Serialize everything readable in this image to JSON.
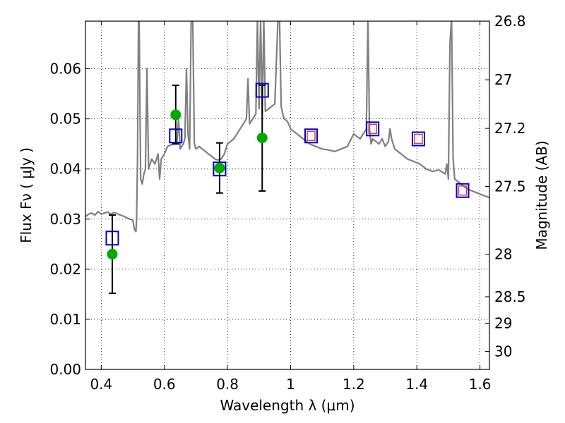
{
  "chart_data": {
    "type": "scatter",
    "xlabel": "Wavelength  λ (μm)",
    "ylabel": "Flux  Fν  ( μJy )",
    "y2label": "Magnitude (AB)",
    "xlim": [
      0.35,
      1.63
    ],
    "ylim": [
      0.0,
      0.0695
    ],
    "x_ticks": [
      0.4,
      0.6,
      0.8,
      1.0,
      1.2,
      1.4,
      1.6
    ],
    "x_tick_labels": [
      "0.4",
      "0.6",
      "0.8",
      "1",
      "1.2",
      "1.4",
      "1.6"
    ],
    "y_ticks": [
      0.0,
      0.01,
      0.02,
      0.03,
      0.04,
      0.05,
      0.06
    ],
    "y_tick_labels": [
      "0.00",
      "0.01",
      "0.02",
      "0.03",
      "0.04",
      "0.05",
      "0.06"
    ],
    "y2_ticks": [
      {
        "label": "26.8",
        "flux": 0.0695
      },
      {
        "label": "27",
        "flux": 0.0578
      },
      {
        "label": "27.2",
        "flux": 0.0481
      },
      {
        "label": "27.5",
        "flux": 0.0365
      },
      {
        "label": "28",
        "flux": 0.023
      },
      {
        "label": "28.5",
        "flux": 0.0145
      },
      {
        "label": "29",
        "flux": 0.0092
      },
      {
        "label": "30",
        "flux": 0.0036
      }
    ],
    "grid": true,
    "colors": {
      "model": "#808080",
      "observed": "#00aa00",
      "synthetic_box": "#0000cc",
      "inner_box": "#cc4444",
      "errorbar": "#000000"
    },
    "model_spectrum": {
      "x": [
        0.35,
        0.36,
        0.37,
        0.38,
        0.39,
        0.4,
        0.41,
        0.42,
        0.43,
        0.44,
        0.45,
        0.46,
        0.47,
        0.48,
        0.49,
        0.5,
        0.505,
        0.51,
        0.512,
        0.515,
        0.518,
        0.52,
        0.525,
        0.53,
        0.535,
        0.54,
        0.545,
        0.55,
        0.56,
        0.57,
        0.58,
        0.585,
        0.59,
        0.595,
        0.6,
        0.61,
        0.62,
        0.63,
        0.64,
        0.645,
        0.65,
        0.655,
        0.66,
        0.665,
        0.67,
        0.675,
        0.68,
        0.685,
        0.69,
        0.695,
        0.7,
        0.71,
        0.72,
        0.73,
        0.74,
        0.75,
        0.76,
        0.77,
        0.78,
        0.79,
        0.8,
        0.81,
        0.82,
        0.83,
        0.84,
        0.85,
        0.86,
        0.865,
        0.87,
        0.875,
        0.88,
        0.89,
        0.895,
        0.9,
        0.905,
        0.91,
        0.915,
        0.92,
        0.93,
        0.94,
        0.95,
        0.96,
        0.965,
        0.97,
        0.975,
        0.98,
        0.99,
        1.0,
        1.02,
        1.04,
        1.06,
        1.08,
        1.1,
        1.12,
        1.14,
        1.16,
        1.18,
        1.2,
        1.22,
        1.24,
        1.245,
        1.25,
        1.255,
        1.26,
        1.27,
        1.28,
        1.29,
        1.3,
        1.31,
        1.315,
        1.32,
        1.33,
        1.35,
        1.37,
        1.39,
        1.41,
        1.43,
        1.45,
        1.47,
        1.49,
        1.495,
        1.5,
        1.505,
        1.51,
        1.515,
        1.52,
        1.53,
        1.54,
        1.55,
        1.56,
        1.58,
        1.6,
        1.62,
        1.63
      ],
      "y": [
        0.0305,
        0.031,
        0.0312,
        0.0308,
        0.0315,
        0.031,
        0.0312,
        0.0314,
        0.031,
        0.0313,
        0.0311,
        0.0308,
        0.0306,
        0.0303,
        0.03,
        0.0298,
        0.028,
        0.0275,
        0.03,
        0.042,
        0.07,
        0.07,
        0.038,
        0.037,
        0.039,
        0.04,
        0.06,
        0.04,
        0.042,
        0.041,
        0.043,
        0.038,
        0.042,
        0.0425,
        0.043,
        0.0445,
        0.0448,
        0.045,
        0.0455,
        0.05,
        0.044,
        0.0445,
        0.045,
        0.046,
        0.06,
        0.047,
        0.044,
        0.07,
        0.07,
        0.045,
        0.044,
        0.0445,
        0.044,
        0.0435,
        0.043,
        0.0425,
        0.042,
        0.0418,
        0.042,
        0.043,
        0.045,
        0.0455,
        0.046,
        0.047,
        0.048,
        0.049,
        0.05,
        0.058,
        0.049,
        0.0495,
        0.05,
        0.051,
        0.07,
        0.052,
        0.07,
        0.051,
        0.07,
        0.0515,
        0.052,
        0.0525,
        0.053,
        0.07,
        0.07,
        0.0525,
        0.051,
        0.05,
        0.0495,
        0.048,
        0.047,
        0.046,
        0.045,
        0.0445,
        0.044,
        0.0438,
        0.0435,
        0.044,
        0.0445,
        0.047,
        0.046,
        0.048,
        0.07,
        0.048,
        0.045,
        0.046,
        0.0455,
        0.045,
        0.046,
        0.0445,
        0.0455,
        0.048,
        0.046,
        0.044,
        0.043,
        0.042,
        0.0415,
        0.041,
        0.04,
        0.0395,
        0.0398,
        0.039,
        0.041,
        0.038,
        0.065,
        0.07,
        0.042,
        0.038,
        0.0375,
        0.037,
        0.0365,
        0.036,
        0.0355,
        0.035,
        0.0345,
        0.0343
      ]
    },
    "observed_points": [
      {
        "x": 0.435,
        "y": 0.023,
        "err_low": 0.0152,
        "err_high": 0.0308
      },
      {
        "x": 0.636,
        "y": 0.0508,
        "err_low": 0.045,
        "err_high": 0.0567
      },
      {
        "x": 0.775,
        "y": 0.0402,
        "err_low": 0.0352,
        "err_high": 0.0452
      },
      {
        "x": 0.91,
        "y": 0.0462,
        "err_low": 0.0356,
        "err_high": 0.0567
      }
    ],
    "synthetic_points": [
      {
        "x": 0.435,
        "y": 0.0262
      },
      {
        "x": 0.636,
        "y": 0.0466
      },
      {
        "x": 0.775,
        "y": 0.04
      },
      {
        "x": 0.91,
        "y": 0.0557
      },
      {
        "x": 1.065,
        "y": 0.0466
      },
      {
        "x": 1.26,
        "y": 0.048
      },
      {
        "x": 1.405,
        "y": 0.046
      },
      {
        "x": 1.545,
        "y": 0.0357
      }
    ],
    "inner_points": [
      {
        "x": 1.065,
        "y": 0.0466
      },
      {
        "x": 1.26,
        "y": 0.048
      },
      {
        "x": 1.405,
        "y": 0.046
      },
      {
        "x": 1.545,
        "y": 0.0357
      }
    ]
  }
}
